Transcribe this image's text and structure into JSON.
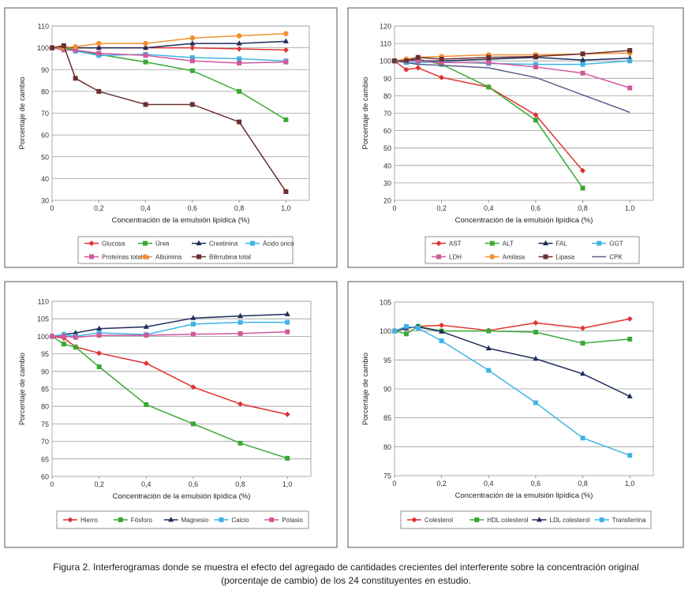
{
  "caption": {
    "line1": "Figura 2. Interferogramas donde se muestra el efecto del agregado de cantidades crecientes del interferente sobre la concentración original",
    "line2": "(porcentaje de cambio) de los 24 constituyentes en estudio."
  },
  "chart_data": [
    {
      "type": "line",
      "xlabel": "Concentración de la emulsión lipídica (%)",
      "ylabel": "Porcentaje de cambio",
      "xlim": [
        0,
        1.1
      ],
      "ylim": [
        30,
        110
      ],
      "xticks": [
        0,
        0.2,
        0.4,
        0.6,
        0.8,
        1.0
      ],
      "xtick_labels": [
        "0",
        "0,2",
        "0,4",
        "0,6",
        "0,8",
        "1,0"
      ],
      "yticks": [
        30,
        40,
        50,
        60,
        70,
        80,
        90,
        100,
        110
      ],
      "ytick_labels": [
        "30",
        "40",
        "50",
        "60",
        "70",
        "80",
        "90",
        "100",
        "110"
      ],
      "grid": true,
      "legend_position": "bottom",
      "legend_columns": 4,
      "series": [
        {
          "name": "Glucosa",
          "color": "#e03131",
          "marker": "diamond",
          "x": [
            0,
            0.05,
            0.1,
            0.2,
            0.4,
            0.6,
            0.8,
            1.0
          ],
          "values": [
            100,
            100,
            100,
            100,
            100,
            100,
            99.5,
            99
          ]
        },
        {
          "name": "Úrea",
          "color": "#3aa935",
          "marker": "square",
          "x": [
            0,
            0.05,
            0.1,
            0.2,
            0.4,
            0.6,
            0.8,
            1.0
          ],
          "values": [
            100,
            100,
            99,
            97,
            93.5,
            89.5,
            80,
            67
          ]
        },
        {
          "name": "Creatinina",
          "color": "#1f2d5a",
          "marker": "triangle",
          "x": [
            0,
            0.05,
            0.1,
            0.2,
            0.4,
            0.6,
            0.8,
            1.0
          ],
          "values": [
            100,
            100.5,
            100,
            100,
            100,
            102,
            102,
            103
          ]
        },
        {
          "name": "Ácido úrico",
          "color": "#3fb4e5",
          "marker": "square",
          "x": [
            0,
            0.05,
            0.1,
            0.2,
            0.4,
            0.6,
            0.8,
            1.0
          ],
          "values": [
            100,
            99.5,
            98.5,
            96.5,
            97,
            95.5,
            95,
            94
          ]
        },
        {
          "name": "Proteínas totales",
          "color": "#d0589e",
          "marker": "square",
          "x": [
            0,
            0.05,
            0.1,
            0.2,
            0.4,
            0.6,
            0.8,
            1.0
          ],
          "values": [
            100,
            99,
            99,
            97.5,
            96.5,
            94,
            93,
            93.5
          ]
        },
        {
          "name": "Albúmina",
          "color": "#f0912f",
          "marker": "circle",
          "x": [
            0,
            0.05,
            0.1,
            0.2,
            0.4,
            0.6,
            0.8,
            1.0
          ],
          "values": [
            100,
            100,
            100.5,
            102,
            102,
            104.5,
            105.5,
            106.5
          ]
        },
        {
          "name": "Bilirrubina total",
          "color": "#6b2f2f",
          "marker": "square",
          "x": [
            0,
            0.05,
            0.1,
            0.2,
            0.4,
            0.6,
            0.8,
            1.0
          ],
          "values": [
            100,
            101,
            86,
            80,
            74,
            74,
            66,
            34
          ]
        }
      ]
    },
    {
      "type": "line",
      "xlabel": "Concentración de la emulsión lipídica (%)",
      "ylabel": "Porcentaje de cambio",
      "xlim": [
        0,
        1.1
      ],
      "ylim": [
        20,
        120
      ],
      "xticks": [
        0,
        0.2,
        0.4,
        0.6,
        0.8,
        1.0
      ],
      "xtick_labels": [
        "0",
        "0,2",
        "0,4",
        "0,6",
        "0,8",
        "1,0"
      ],
      "yticks": [
        20,
        30,
        40,
        50,
        60,
        70,
        80,
        90,
        100,
        110,
        120
      ],
      "ytick_labels": [
        "20",
        "30",
        "40",
        "50",
        "60",
        "70",
        "80",
        "90",
        "100",
        "110",
        "120"
      ],
      "grid": true,
      "legend_position": "bottom",
      "legend_columns": 4,
      "series": [
        {
          "name": "AST",
          "color": "#e03131",
          "marker": "diamond",
          "x": [
            0,
            0.05,
            0.1,
            0.2,
            0.4,
            0.6,
            0.8
          ],
          "values": [
            100,
            95,
            96,
            90.5,
            85,
            69,
            37
          ]
        },
        {
          "name": "ALT",
          "color": "#3aa935",
          "marker": "square",
          "x": [
            0,
            0.05,
            0.1,
            0.2,
            0.4,
            0.6,
            0.8
          ],
          "values": [
            100,
            100,
            101,
            98,
            85,
            66,
            27
          ]
        },
        {
          "name": "FAL",
          "color": "#1f2d5a",
          "marker": "triangle",
          "x": [
            0,
            0.05,
            0.1,
            0.2,
            0.4,
            0.6,
            0.8,
            1.0
          ],
          "values": [
            100,
            101,
            100,
            100,
            101,
            102,
            100.5,
            101.5
          ]
        },
        {
          "name": "GGT",
          "color": "#3fb4e5",
          "marker": "square",
          "x": [
            0,
            0.05,
            0.1,
            0.2,
            0.4,
            0.6,
            0.8,
            1.0
          ],
          "values": [
            100,
            99,
            99,
            99.5,
            98.5,
            98,
            98,
            100
          ]
        },
        {
          "name": "LDH",
          "color": "#d0589e",
          "marker": "square",
          "x": [
            0,
            0.05,
            0.1,
            0.2,
            0.4,
            0.6,
            0.8,
            1.0
          ],
          "values": [
            100,
            100,
            100,
            99,
            99,
            96.5,
            93,
            84.5
          ]
        },
        {
          "name": "Amilasa",
          "color": "#f0912f",
          "marker": "circle",
          "x": [
            0,
            0.05,
            0.1,
            0.2,
            0.4,
            0.6,
            0.8,
            1.0
          ],
          "values": [
            100,
            101,
            102,
            102.5,
            103.5,
            103.5,
            104,
            104.5
          ]
        },
        {
          "name": "Lipasa",
          "color": "#6b2f2f",
          "marker": "square",
          "x": [
            0,
            0.05,
            0.1,
            0.2,
            0.4,
            0.6,
            0.8,
            1.0
          ],
          "values": [
            100,
            100,
            102,
            101,
            102,
            102.5,
            104,
            106
          ]
        },
        {
          "name": "CPK",
          "color": "#5a5e8c",
          "marker": "none",
          "x": [
            0,
            0.05,
            0.1,
            0.2,
            0.4,
            0.6,
            0.8,
            1.0
          ],
          "values": [
            100,
            99,
            98,
            97.5,
            96,
            90.5,
            80.5,
            70.5
          ]
        }
      ]
    },
    {
      "type": "line",
      "xlabel": "Concentración de la emulsión lipídica (%)",
      "ylabel": "Porcentaje de cambio",
      "xlim": [
        0,
        1.1
      ],
      "ylim": [
        60,
        110
      ],
      "xticks": [
        0,
        0.2,
        0.4,
        0.6,
        0.8,
        1.0
      ],
      "xtick_labels": [
        "0",
        "0,2",
        "0,4",
        "0,6",
        "0,8",
        "1,0"
      ],
      "yticks": [
        60,
        65,
        70,
        75,
        80,
        85,
        90,
        95,
        100,
        105,
        110
      ],
      "ytick_labels": [
        "60",
        "65",
        "70",
        "75",
        "80",
        "85",
        "90",
        "95",
        "100",
        "105",
        "110"
      ],
      "grid": true,
      "legend_position": "bottom",
      "legend_columns": 5,
      "series": [
        {
          "name": "Hierro",
          "color": "#e03131",
          "marker": "diamond",
          "x": [
            0,
            0.05,
            0.1,
            0.2,
            0.4,
            0.6,
            0.8,
            1.0
          ],
          "values": [
            100,
            99.5,
            97,
            95.2,
            92.3,
            85.5,
            80.7,
            77.7
          ]
        },
        {
          "name": "Fósforo",
          "color": "#3aa935",
          "marker": "square",
          "x": [
            0,
            0.05,
            0.1,
            0.2,
            0.4,
            0.6,
            0.8,
            1.0
          ],
          "values": [
            100,
            97.8,
            96.9,
            91.3,
            80.5,
            75,
            69.5,
            65.2
          ]
        },
        {
          "name": "Magnesio",
          "color": "#1f2d5a",
          "marker": "triangle",
          "x": [
            0,
            0.05,
            0.1,
            0.2,
            0.4,
            0.6,
            0.8,
            1.0
          ],
          "values": [
            100,
            100.5,
            101,
            102.2,
            102.7,
            105.2,
            105.8,
            106.3
          ]
        },
        {
          "name": "Calcio",
          "color": "#3fb4e5",
          "marker": "square",
          "x": [
            0,
            0.05,
            0.1,
            0.2,
            0.4,
            0.6,
            0.8,
            1.0
          ],
          "values": [
            100,
            100.5,
            100,
            101,
            100.5,
            103.5,
            104,
            104
          ]
        },
        {
          "name": "Potasio",
          "color": "#d0589e",
          "marker": "square",
          "x": [
            0,
            0.05,
            0.1,
            0.2,
            0.4,
            0.6,
            0.8,
            1.0
          ],
          "values": [
            100,
            100,
            99.7,
            100.3,
            100.3,
            100.6,
            100.8,
            101.3
          ]
        }
      ]
    },
    {
      "type": "line",
      "xlabel": "Concentración de la emulsión lipídica (%)",
      "ylabel": "Porcentaje de cambio",
      "xlim": [
        0,
        1.1
      ],
      "ylim": [
        75,
        105
      ],
      "xticks": [
        0,
        0.2,
        0.4,
        0.6,
        0.8,
        1.0
      ],
      "xtick_labels": [
        "0",
        "0,2",
        "0,4",
        "0,6",
        "0,8",
        "1,0"
      ],
      "yticks": [
        75,
        80,
        85,
        90,
        95,
        100,
        105
      ],
      "ytick_labels": [
        "75",
        "80",
        "85",
        "90",
        "95",
        "100",
        "105"
      ],
      "grid": true,
      "legend_position": "bottom",
      "legend_columns": 4,
      "series": [
        {
          "name": "Colesterol",
          "color": "#e03131",
          "marker": "diamond",
          "x": [
            0,
            0.05,
            0.1,
            0.2,
            0.4,
            0.6,
            0.8,
            1.0
          ],
          "values": [
            100,
            100.5,
            100.8,
            101,
            100.1,
            101.4,
            100.5,
            102.1
          ]
        },
        {
          "name": "HDL colesterol",
          "color": "#3aa935",
          "marker": "square",
          "x": [
            0,
            0.05,
            0.1,
            0.2,
            0.4,
            0.6,
            0.8,
            1.0
          ],
          "values": [
            100,
            99.5,
            100.8,
            100,
            100,
            99.8,
            97.9,
            98.6
          ]
        },
        {
          "name": "LDL colesterol",
          "color": "#1f2d5a",
          "marker": "triangle",
          "x": [
            0,
            0.05,
            0.1,
            0.2,
            0.4,
            0.6,
            0.8,
            1.0
          ],
          "values": [
            100,
            100.5,
            100.7,
            99.9,
            97,
            95.2,
            92.6,
            88.7
          ]
        },
        {
          "name": "Transferrina",
          "color": "#3fb4e5",
          "marker": "square",
          "x": [
            0,
            0.05,
            0.1,
            0.2,
            0.4,
            0.6,
            0.8,
            1.0
          ],
          "values": [
            100,
            100.8,
            100.5,
            98.3,
            93.2,
            87.6,
            81.5,
            78.5
          ]
        }
      ]
    }
  ]
}
